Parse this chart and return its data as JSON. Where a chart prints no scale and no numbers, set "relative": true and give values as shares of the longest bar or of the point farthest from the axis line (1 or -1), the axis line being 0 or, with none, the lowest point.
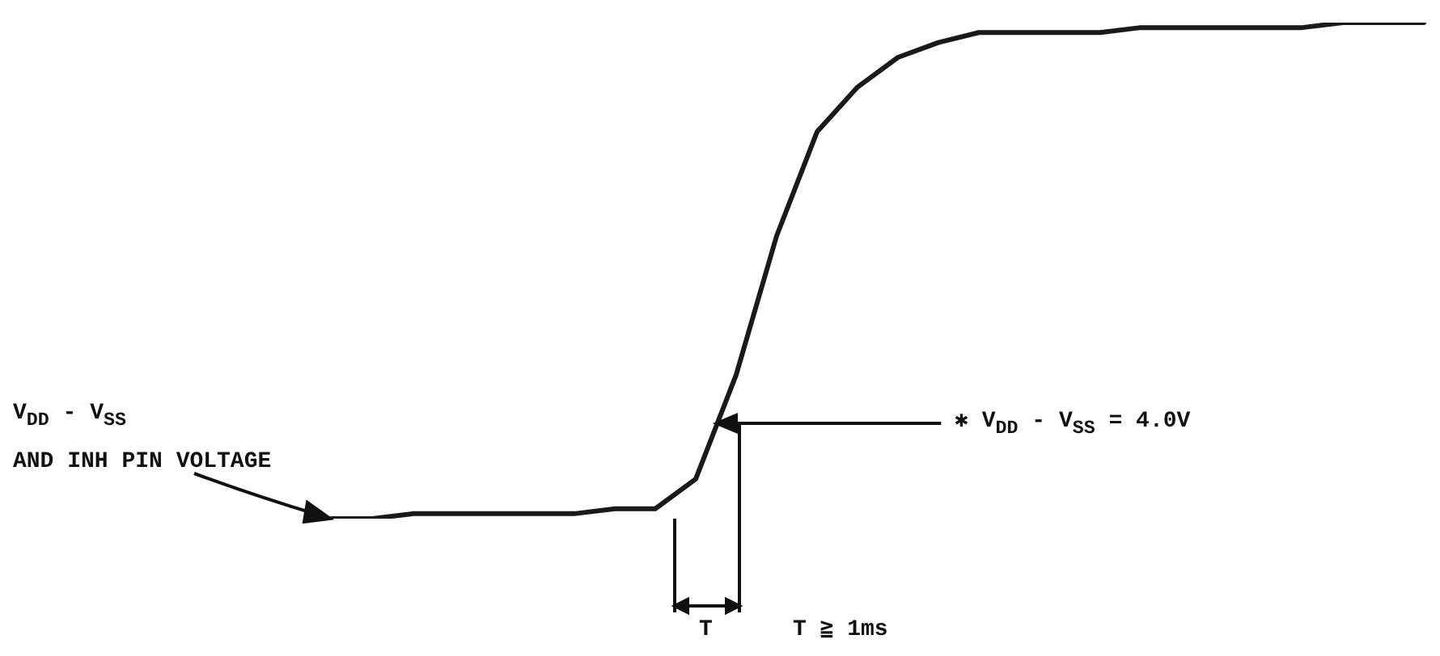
{
  "chart_data": {
    "type": "line",
    "relative": true,
    "color": "#1a1a1a",
    "categories": [
      null,
      null,
      null,
      null,
      null,
      null,
      null,
      null,
      null,
      null,
      null,
      null,
      null,
      null,
      null,
      null,
      null,
      null,
      null,
      null,
      null,
      null,
      null,
      null,
      null,
      null,
      null,
      null
    ],
    "values": [
      0,
      0,
      0.01,
      0.01,
      0.01,
      0.01,
      0.01,
      0.02,
      0.02,
      0.08,
      0.29,
      0.57,
      0.78,
      0.87,
      0.93,
      0.96,
      0.98,
      0.98,
      0.98,
      0.98,
      0.99,
      0.99,
      0.99,
      0.99,
      0.99,
      1,
      1,
      1
    ],
    "annotations": [
      "V$_{DD}$ - V$_{SS}$",
      "AND INH PIN VOLTAGE",
      "T",
      "T ≧ 1ms",
      "✱ V$_{DD}$ - V$_{SS}$ = 4.0V"
    ]
  }
}
